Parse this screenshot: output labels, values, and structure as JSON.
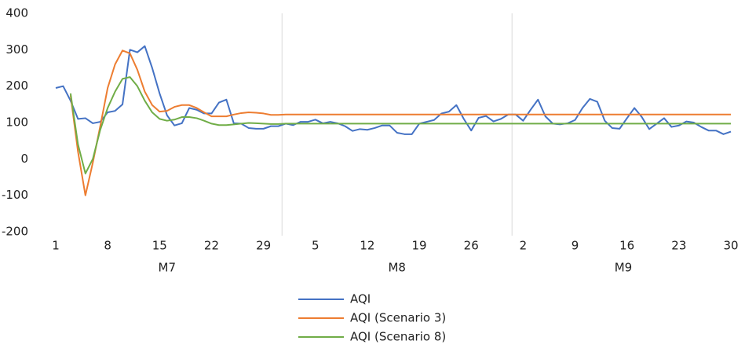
{
  "chart_data": {
    "type": "line",
    "categories": [
      "1",
      null,
      null,
      null,
      null,
      null,
      null,
      "8",
      null,
      null,
      null,
      null,
      null,
      null,
      "15",
      null,
      null,
      null,
      null,
      null,
      null,
      "22",
      null,
      null,
      null,
      null,
      null,
      null,
      "29",
      null,
      null,
      null,
      null,
      null,
      null,
      "5",
      null,
      null,
      null,
      null,
      null,
      null,
      "12",
      null,
      null,
      null,
      null,
      null,
      null,
      "19",
      null,
      null,
      null,
      null,
      null,
      null,
      "26",
      null,
      null,
      null,
      null,
      null,
      null,
      "2",
      null,
      null,
      null,
      null,
      null,
      null,
      "9",
      null,
      null,
      null,
      null,
      null,
      null,
      "16",
      null,
      null,
      null,
      null,
      null,
      null,
      "23",
      null,
      null,
      null,
      null,
      null,
      null,
      "30"
    ],
    "x_groups": [
      "M7",
      "M8",
      "M9"
    ],
    "series": [
      {
        "name": "AQI",
        "color": "#4472c4",
        "values": [
          195,
          200,
          160,
          110,
          112,
          98,
          102,
          128,
          132,
          150,
          300,
          293,
          310,
          250,
          180,
          120,
          92,
          98,
          140,
          135,
          125,
          125,
          155,
          163,
          98,
          97,
          85,
          83,
          83,
          90,
          90,
          97,
          93,
          102,
          102,
          108,
          98,
          102,
          98,
          90,
          77,
          82,
          80,
          85,
          92,
          92,
          72,
          68,
          68,
          97,
          102,
          107,
          125,
          130,
          148,
          110,
          78,
          113,
          118,
          103,
          110,
          122,
          122,
          105,
          135,
          163,
          117,
          97,
          95,
          98,
          107,
          140,
          165,
          157,
          105,
          85,
          83,
          112,
          140,
          115,
          82,
          97,
          112,
          88,
          92,
          103,
          100,
          88,
          78,
          78,
          68,
          75
        ]
      },
      {
        "name": "AQI (Scenario 3)",
        "color": "#ed7d31",
        "values": [
          null,
          null,
          175,
          20,
          -100,
          -10,
          90,
          195,
          260,
          298,
          290,
          245,
          185,
          148,
          130,
          132,
          143,
          148,
          148,
          140,
          128,
          117,
          117,
          117,
          122,
          126,
          128,
          127,
          125,
          121,
          121,
          122,
          122,
          122,
          122,
          122,
          122,
          122,
          122,
          122,
          122,
          122,
          122,
          122,
          122,
          122,
          122,
          122,
          122,
          122,
          122,
          122,
          122,
          122,
          122,
          122,
          122,
          122,
          122,
          122,
          122,
          122,
          122,
          122,
          122,
          122,
          122,
          122,
          122,
          122,
          122,
          122,
          122,
          122,
          122,
          122,
          122,
          122,
          122,
          122,
          122,
          122,
          122,
          122,
          122,
          122,
          122,
          122,
          122,
          122,
          122,
          122
        ]
      },
      {
        "name": "AQI (Scenario 8)",
        "color": "#70ad47",
        "values": [
          null,
          null,
          180,
          40,
          -40,
          0,
          80,
          140,
          185,
          220,
          225,
          200,
          160,
          128,
          110,
          105,
          108,
          115,
          115,
          112,
          105,
          97,
          93,
          93,
          95,
          97,
          99,
          98,
          97,
          96,
          96,
          97,
          97,
          97,
          97,
          97,
          97,
          97,
          97,
          97,
          97,
          97,
          97,
          97,
          97,
          97,
          97,
          97,
          97,
          97,
          97,
          97,
          97,
          97,
          97,
          97,
          97,
          97,
          97,
          97,
          97,
          97,
          97,
          97,
          97,
          97,
          97,
          97,
          97,
          97,
          97,
          97,
          97,
          97,
          97,
          97,
          97,
          97,
          97,
          97,
          97,
          97,
          97,
          97,
          97,
          97,
          97,
          97,
          97,
          97,
          97,
          97
        ]
      }
    ],
    "ylim": [
      -200,
      400
    ],
    "yticks": [
      -200,
      -100,
      0,
      100,
      200,
      300,
      400
    ],
    "grid": false,
    "legend": "bottom"
  }
}
